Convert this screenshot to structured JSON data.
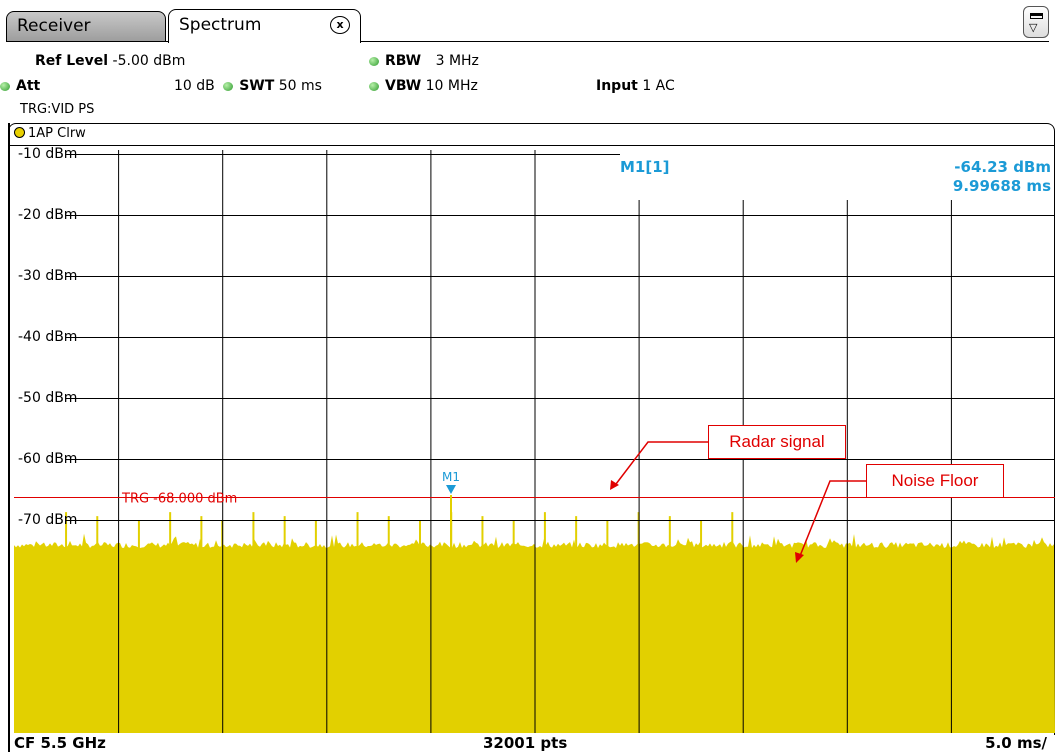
{
  "tabs": {
    "receiver": "Receiver",
    "spectrum": "Spectrum",
    "close": "x"
  },
  "params": {
    "ref_level_label": "Ref Level",
    "ref_level_value": "-5.00 dBm",
    "att_label": "Att",
    "att_value": "10 dB",
    "swt_label": "SWT",
    "swt_value": "50 ms",
    "rbw_label": "RBW",
    "rbw_value": "3 MHz",
    "vbw_label": "VBW",
    "vbw_value": "10 MHz",
    "input_label": "Input",
    "input_value": "1 AC",
    "trigger": "TRG:VID PS"
  },
  "trace_label": "1AP Clrw",
  "marker": {
    "name": "M1",
    "readout_label": "M1[1]",
    "level": "-64.23 dBm",
    "time": "9.99688 ms"
  },
  "trigger_line": {
    "label": "TRG  -68.000 dBm",
    "level_dbm": -68
  },
  "annotations": {
    "radar": "Radar signal",
    "noise": "Noise Floor"
  },
  "footer": {
    "center_freq": "CF 5.5 GHz",
    "points": "32001 pts",
    "time_div": "5.0 ms/"
  },
  "chart_data": {
    "type": "line",
    "y_tick_labels": [
      "-10 dBm",
      "-20 dBm",
      "-30 dBm",
      "-40 dBm",
      "-50 dBm",
      "-60 dBm",
      "-70 dBm"
    ],
    "y_ticks": [
      -10,
      -20,
      -30,
      -40,
      -50,
      -60,
      -70
    ],
    "ylim": [
      -5,
      -105
    ],
    "xlim_ms": [
      0,
      50
    ],
    "noise_floor_dbm": -75,
    "pulses_ms": [
      2.5,
      4.0,
      6.0,
      7.5,
      9.0,
      10.0,
      11.5,
      13.0,
      14.5,
      16.5,
      18.0,
      19.5,
      21.0,
      22.5,
      24.0,
      25.5,
      27.0,
      28.5,
      30.0,
      31.5,
      33.0,
      34.5
    ],
    "pulse_level_dbm": -64.2,
    "grid": true,
    "colors": {
      "trace": "#e2d000",
      "trigger": "#e00000",
      "marker": "#1b9ad6"
    }
  }
}
